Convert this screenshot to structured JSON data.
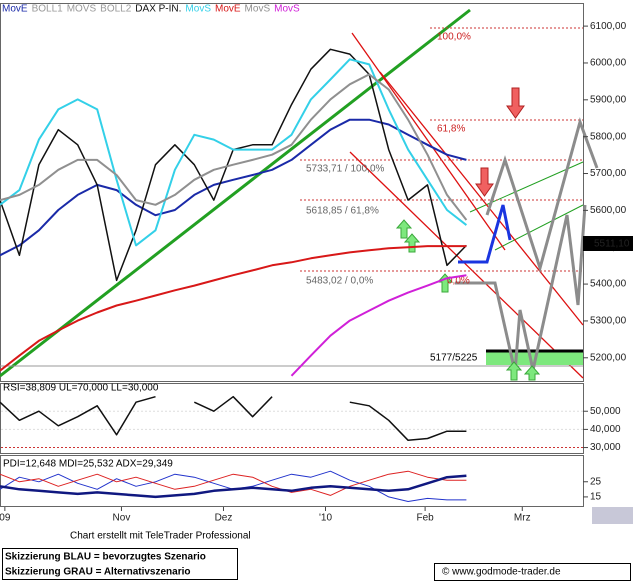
{
  "chart_data": [
    {
      "type": "line",
      "header_prefix": [
        "BOLL1",
        "MOVS",
        "BOLL2"
      ],
      "xlim": [
        0,
        120
      ],
      "xticks": [
        {
          "value": 1,
          "label": "09"
        },
        {
          "value": 25,
          "label": "Nov"
        },
        {
          "value": 46,
          "label": "Dez"
        },
        {
          "value": 67,
          "label": "'10"
        },
        {
          "value": 87.5,
          "label": "Feb"
        },
        {
          "value": 107.5,
          "label": "Mrz"
        }
      ],
      "x": [
        0,
        4,
        8,
        12,
        16,
        20,
        24,
        28,
        32,
        36,
        40,
        44,
        48,
        52,
        56,
        60,
        64,
        68,
        72,
        76,
        80,
        84,
        88,
        92,
        96
      ],
      "ylim": [
        5137,
        6160
      ],
      "yticks": [
        {
          "value": 5200,
          "label": "5200,00"
        },
        {
          "value": 5300,
          "label": "5300,00"
        },
        {
          "value": 5400,
          "label": "5400,00"
        },
        {
          "value": 5500,
          "label": "5500,00"
        },
        {
          "value": 5600,
          "label": "5600,00"
        },
        {
          "value": 5700,
          "label": "5700,00"
        },
        {
          "value": 5800,
          "label": "5800,00"
        },
        {
          "value": 5900,
          "label": "5900,00"
        },
        {
          "value": 6000,
          "label": "6000,00"
        },
        {
          "value": 6100,
          "label": "6100,00"
        }
      ],
      "series": [
        {
          "name": "MovE",
          "color": "#1a2aa8",
          "width": 2,
          "values": [
            5478,
            5505,
            5546,
            5601,
            5642,
            5669,
            5655,
            5615,
            5587,
            5601,
            5642,
            5669,
            5683,
            5696,
            5710,
            5737,
            5778,
            5819,
            5846,
            5846,
            5833,
            5805,
            5778,
            5751,
            5737
          ]
        },
        {
          "name": "DAX P-IN.",
          "color": "#111111",
          "width": 1.5,
          "values": [
            5628,
            5478,
            5724,
            5819,
            5778,
            5669,
            5410,
            5546,
            5724,
            5778,
            5724,
            5628,
            5765,
            5778,
            5778,
            5887,
            5983,
            6037,
            6024,
            5969,
            5765,
            5628,
            5669,
            5451,
            5505
          ]
        },
        {
          "name": "MovS",
          "color": "#33d0e8",
          "width": 2,
          "values": [
            5615,
            5655,
            5792,
            5874,
            5901,
            5874,
            5683,
            5505,
            5546,
            5710,
            5805,
            5792,
            5765,
            5765,
            5765,
            5805,
            5901,
            5955,
            6010,
            5996,
            5874,
            5765,
            5683,
            5601,
            5560
          ]
        },
        {
          "name": "MovE",
          "color": "#d81818",
          "width": 2,
          "values": [
            5165,
            5206,
            5246,
            5274,
            5301,
            5323,
            5342,
            5355,
            5369,
            5383,
            5396,
            5410,
            5424,
            5437,
            5451,
            5459,
            5470,
            5478,
            5486,
            5492,
            5497,
            5500,
            5503,
            5503,
            5503
          ]
        },
        {
          "name": "MovS",
          "color": "#909090",
          "width": 2,
          "values": [
            5628,
            5642,
            5669,
            5710,
            5737,
            5737,
            5696,
            5628,
            5615,
            5642,
            5683,
            5710,
            5724,
            5737,
            5751,
            5778,
            5846,
            5901,
            5942,
            5969,
            5928,
            5846,
            5751,
            5642,
            5574
          ]
        },
        {
          "name": "MovS",
          "color": "#d020d8",
          "width": 2,
          "values": [
            null,
            null,
            null,
            null,
            null,
            null,
            null,
            null,
            null,
            null,
            null,
            null,
            null,
            null,
            null,
            5151,
            5206,
            5260,
            5301,
            5328,
            5355,
            5377,
            5396,
            5416,
            5424
          ]
        }
      ],
      "annotations": [
        "100,0%",
        "61,8%",
        "5733,71 / 100,0%",
        "5618,85 / 61,8%",
        "5483,02 / 0,0%",
        "0,0%",
        "5177/5225"
      ],
      "last_price_label": "5511,10"
    },
    {
      "type": "line",
      "title": "RSI=38,809 UL=70,000 LL=30,000",
      "ylim": [
        27,
        65
      ],
      "yticks": [
        {
          "value": 30,
          "label": "30,000"
        },
        {
          "value": 40,
          "label": "40,000"
        },
        {
          "value": 50,
          "label": "50,000"
        }
      ],
      "series": [
        {
          "color": "#111111",
          "width": 1.5,
          "values": [
            55,
            45,
            50,
            42,
            47,
            53,
            37,
            55,
            58,
            null,
            55,
            50,
            58,
            47,
            58,
            null,
            null,
            null,
            55,
            53,
            45,
            34,
            35,
            39,
            39
          ]
        }
      ]
    },
    {
      "type": "line",
      "title": "PDI=12,648 MDI=25,532 ADX=29,349",
      "ylim": [
        9,
        42
      ],
      "yticks": [
        15,
        25
      ],
      "series": [
        {
          "color": "#2233cc",
          "width": 1,
          "values": [
            20,
            28,
            25,
            30,
            24,
            20,
            27,
            22,
            25,
            30,
            28,
            24,
            20,
            22,
            26,
            30,
            28,
            32,
            26,
            22,
            15,
            12,
            14,
            13,
            13
          ]
        },
        {
          "color": "#dd2222",
          "width": 1,
          "values": [
            30,
            25,
            27,
            22,
            26,
            30,
            25,
            28,
            24,
            20,
            22,
            26,
            30,
            28,
            22,
            18,
            20,
            16,
            22,
            26,
            30,
            32,
            28,
            26,
            26
          ]
        },
        {
          "color": "#101880",
          "width": 2.5,
          "values": [
            22,
            20,
            19,
            18,
            17,
            18,
            17,
            16,
            15,
            16,
            17,
            19,
            20,
            21,
            20,
            19,
            21,
            22,
            21,
            20,
            19,
            20,
            24,
            28,
            29
          ]
        }
      ]
    }
  ],
  "footer": {
    "credit": "Chart erstellt mit TeleTrader Professional",
    "note_blue": "Skizzierung BLAU = bevorzugtes Szenario",
    "note_gray": "Skizzierung GRAU = Alternativszenario",
    "copyright": "© www.godmode-trader.de"
  }
}
